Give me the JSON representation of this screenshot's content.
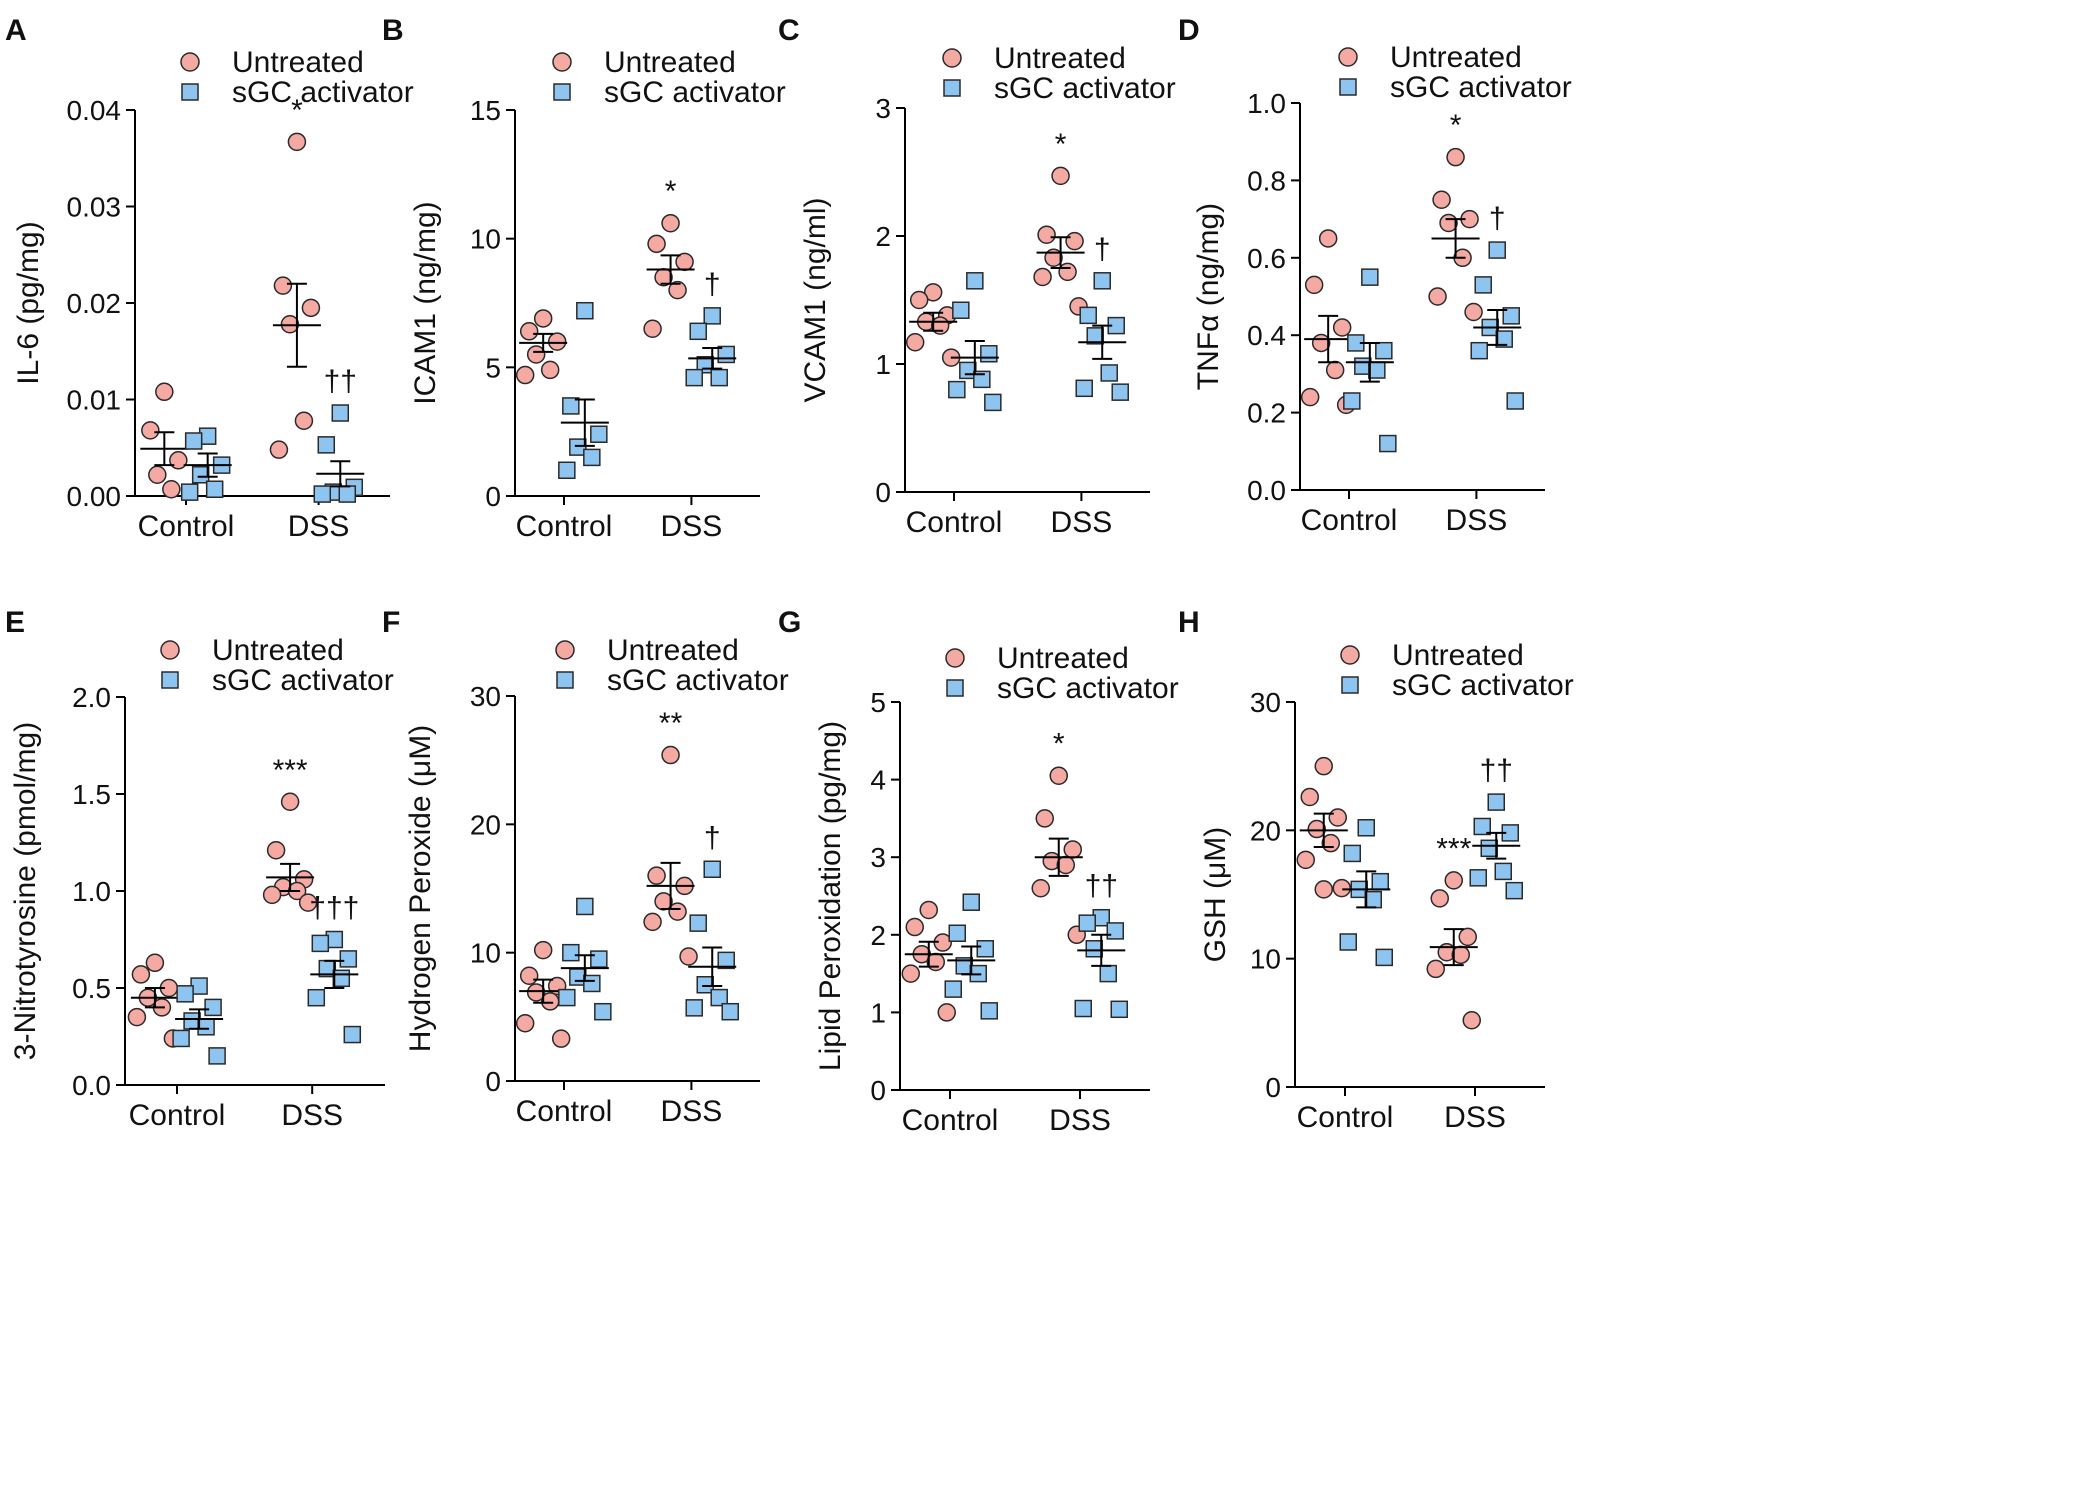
{
  "colors": {
    "untreated": "#f4a9a3",
    "sgc": "#8ec5f0",
    "stroke": "#2a2a2a"
  },
  "legend": {
    "untreated": "Untreated",
    "sgc": "sGC activator"
  },
  "chart_data": [
    {
      "panel": "A",
      "type": "scatter",
      "ylabel": "IL-6 (pg/mg)",
      "ylim": [
        0,
        0.04
      ],
      "yticks": [
        "0.00",
        "0.01",
        "0.02",
        "0.03",
        "0.04"
      ],
      "categories": [
        "Control",
        "DSS"
      ],
      "series": [
        {
          "name": "Untreated",
          "groups": [
            {
              "category": "Control",
              "values": [
                0.0108,
                0.0068,
                0.0037,
                0.0022,
                0.0007
              ],
              "mean": 0.0049,
              "sem": 0.0017
            },
            {
              "category": "DSS",
              "values": [
                0.0367,
                0.0218,
                0.0195,
                0.0178,
                0.0078,
                0.0048
              ],
              "mean": 0.0177,
              "sem": 0.0043,
              "annotation": "*"
            }
          ]
        },
        {
          "name": "sGC activator",
          "groups": [
            {
              "category": "Control",
              "values": [
                0.0062,
                0.0057,
                0.0032,
                0.0022,
                0.0007,
                0.0004
              ],
              "mean": 0.0032,
              "sem": 0.0012
            },
            {
              "category": "DSS",
              "values": [
                0.0086,
                0.0053,
                0.0009,
                0.0004,
                0.0002,
                0.0002
              ],
              "mean": 0.0023,
              "sem": 0.0013,
              "annotation": "††"
            }
          ]
        }
      ]
    },
    {
      "panel": "B",
      "type": "scatter",
      "ylabel": "ICAM1 (ng/mg)",
      "ylim": [
        0,
        15
      ],
      "yticks": [
        "0",
        "5",
        "10",
        "15"
      ],
      "categories": [
        "Control",
        "DSS"
      ],
      "series": [
        {
          "name": "Untreated",
          "groups": [
            {
              "category": "Control",
              "values": [
                6.9,
                6.4,
                6.0,
                5.5,
                4.9,
                4.7
              ],
              "mean": 5.95,
              "sem": 0.35
            },
            {
              "category": "DSS",
              "values": [
                10.6,
                9.8,
                9.1,
                8.5,
                8.0,
                6.5
              ],
              "mean": 8.8,
              "sem": 0.55,
              "annotation": "*"
            }
          ]
        },
        {
          "name": "sGC activator",
          "groups": [
            {
              "category": "Control",
              "values": [
                7.2,
                3.5,
                2.4,
                1.9,
                1.5,
                1.0
              ],
              "mean": 2.85,
              "sem": 0.9
            },
            {
              "category": "DSS",
              "values": [
                7.0,
                6.4,
                5.5,
                5.1,
                4.6,
                4.6
              ],
              "mean": 5.35,
              "sem": 0.4,
              "annotation": "†"
            }
          ]
        }
      ]
    },
    {
      "panel": "C",
      "type": "scatter",
      "ylabel": "VCAM1 (ng/ml)",
      "ylim": [
        0,
        3
      ],
      "yticks": [
        "0",
        "1",
        "2",
        "3"
      ],
      "categories": [
        "Control",
        "DSS"
      ],
      "series": [
        {
          "name": "Untreated",
          "groups": [
            {
              "category": "Control",
              "values": [
                1.56,
                1.5,
                1.38,
                1.33,
                1.3,
                1.17,
                1.05
              ],
              "mean": 1.33,
              "sem": 0.07
            },
            {
              "category": "DSS",
              "values": [
                2.47,
                2.01,
                1.96,
                1.83,
                1.72,
                1.68,
                1.45
              ],
              "mean": 1.87,
              "sem": 0.12,
              "annotation": "*"
            }
          ]
        },
        {
          "name": "sGC activator",
          "groups": [
            {
              "category": "Control",
              "values": [
                1.65,
                1.42,
                1.08,
                0.95,
                0.88,
                0.8,
                0.7
              ],
              "mean": 1.05,
              "sem": 0.13
            },
            {
              "category": "DSS",
              "values": [
                1.65,
                1.38,
                1.3,
                1.22,
                0.93,
                0.81,
                0.78
              ],
              "mean": 1.17,
              "sem": 0.13,
              "annotation": "†"
            }
          ]
        }
      ]
    },
    {
      "panel": "D",
      "type": "scatter",
      "ylabel": "TNFα (ng/mg)",
      "ylim": [
        0,
        1.0
      ],
      "yticks": [
        "0.0",
        "0.2",
        "0.4",
        "0.6",
        "0.8",
        "1.0"
      ],
      "categories": [
        "Control",
        "DSS"
      ],
      "series": [
        {
          "name": "Untreated",
          "groups": [
            {
              "category": "Control",
              "values": [
                0.65,
                0.53,
                0.42,
                0.38,
                0.31,
                0.24,
                0.22
              ],
              "mean": 0.39,
              "sem": 0.06
            },
            {
              "category": "DSS",
              "values": [
                0.86,
                0.75,
                0.7,
                0.69,
                0.6,
                0.5,
                0.46
              ],
              "mean": 0.65,
              "sem": 0.05,
              "annotation": "*"
            }
          ]
        },
        {
          "name": "sGC activator",
          "groups": [
            {
              "category": "Control",
              "values": [
                0.55,
                0.38,
                0.36,
                0.32,
                0.31,
                0.23,
                0.12
              ],
              "mean": 0.33,
              "sem": 0.05
            },
            {
              "category": "DSS",
              "values": [
                0.62,
                0.53,
                0.45,
                0.42,
                0.39,
                0.36,
                0.23
              ],
              "mean": 0.42,
              "sem": 0.045,
              "annotation": "†"
            }
          ]
        }
      ]
    },
    {
      "panel": "E",
      "type": "scatter",
      "ylabel": "3-Nitrotyrosine (pmol/mg)",
      "ylim": [
        0,
        2.0
      ],
      "yticks": [
        "0.0",
        "0.5",
        "1.0",
        "1.5",
        "2.0"
      ],
      "categories": [
        "Control",
        "DSS"
      ],
      "series": [
        {
          "name": "Untreated",
          "groups": [
            {
              "category": "Control",
              "values": [
                0.63,
                0.57,
                0.5,
                0.45,
                0.4,
                0.35,
                0.24
              ],
              "mean": 0.45,
              "sem": 0.05
            },
            {
              "category": "DSS",
              "values": [
                1.46,
                1.21,
                1.06,
                1.02,
                1.0,
                0.98,
                0.94
              ],
              "mean": 1.07,
              "sem": 0.07,
              "annotation": "***"
            }
          ]
        },
        {
          "name": "sGC activator",
          "groups": [
            {
              "category": "Control",
              "values": [
                0.51,
                0.47,
                0.4,
                0.33,
                0.3,
                0.24,
                0.15
              ],
              "mean": 0.34,
              "sem": 0.05
            },
            {
              "category": "DSS",
              "values": [
                0.75,
                0.73,
                0.65,
                0.6,
                0.55,
                0.45,
                0.26
              ],
              "mean": 0.57,
              "sem": 0.07,
              "annotation": "†††"
            }
          ]
        }
      ]
    },
    {
      "panel": "F",
      "type": "scatter",
      "ylabel": "Hydrogen Peroxide (μM)",
      "ylim": [
        0,
        30
      ],
      "yticks": [
        "0",
        "10",
        "20",
        "30"
      ],
      "categories": [
        "Control",
        "DSS"
      ],
      "series": [
        {
          "name": "Untreated",
          "groups": [
            {
              "category": "Control",
              "values": [
                10.2,
                8.2,
                7.4,
                6.9,
                6.2,
                4.5,
                3.3
              ],
              "mean": 7.0,
              "sem": 0.9
            },
            {
              "category": "DSS",
              "values": [
                25.4,
                16.0,
                15.2,
                14.0,
                13.2,
                12.4,
                9.7
              ],
              "mean": 15.2,
              "sem": 1.8,
              "annotation": "**"
            }
          ]
        },
        {
          "name": "sGC activator",
          "groups": [
            {
              "category": "Control",
              "values": [
                13.6,
                10.0,
                9.5,
                8.1,
                7.6,
                6.5,
                5.4
              ],
              "mean": 8.8,
              "sem": 1.0
            },
            {
              "category": "DSS",
              "values": [
                16.5,
                12.3,
                9.4,
                7.5,
                6.5,
                5.7,
                5.4
              ],
              "mean": 8.9,
              "sem": 1.5,
              "annotation": "†"
            }
          ]
        }
      ]
    },
    {
      "panel": "G",
      "type": "scatter",
      "ylabel": "Lipid Peroxidation (pg/mg)",
      "ylim": [
        0,
        5
      ],
      "yticks": [
        "0",
        "1",
        "2",
        "3",
        "4",
        "5"
      ],
      "categories": [
        "Control",
        "DSS"
      ],
      "series": [
        {
          "name": "Untreated",
          "groups": [
            {
              "category": "Control",
              "values": [
                2.32,
                2.1,
                1.9,
                1.75,
                1.65,
                1.5,
                1.0
              ],
              "mean": 1.75,
              "sem": 0.16
            },
            {
              "category": "DSS",
              "values": [
                4.05,
                3.5,
                3.1,
                2.95,
                2.9,
                2.6,
                2.0
              ],
              "mean": 3.0,
              "sem": 0.24,
              "annotation": "*"
            }
          ]
        },
        {
          "name": "sGC activator",
          "groups": [
            {
              "category": "Control",
              "values": [
                2.42,
                2.02,
                1.82,
                1.6,
                1.5,
                1.3,
                1.02
              ],
              "mean": 1.67,
              "sem": 0.18
            },
            {
              "category": "DSS",
              "values": [
                2.22,
                2.15,
                2.05,
                1.82,
                1.5,
                1.05,
                1.04
              ],
              "mean": 1.8,
              "sem": 0.2,
              "annotation": "††"
            }
          ]
        }
      ]
    },
    {
      "panel": "H",
      "type": "scatter",
      "ylabel": "GSH (μM)",
      "ylim": [
        0,
        30
      ],
      "yticks": [
        "0",
        "10",
        "20",
        "30"
      ],
      "categories": [
        "Control",
        "DSS"
      ],
      "series": [
        {
          "name": "Untreated",
          "groups": [
            {
              "category": "Control",
              "values": [
                25.0,
                22.6,
                21.0,
                20.1,
                19.0,
                17.7,
                15.5,
                15.4
              ],
              "mean": 20.0,
              "sem": 1.3
            },
            {
              "category": "DSS",
              "values": [
                16.1,
                14.7,
                11.7,
                10.5,
                10.3,
                9.2,
                5.2
              ],
              "mean": 10.9,
              "sem": 1.4,
              "annotation": "***"
            }
          ]
        },
        {
          "name": "sGC activator",
          "groups": [
            {
              "category": "Control",
              "values": [
                20.2,
                18.2,
                16.0,
                15.4,
                14.6,
                11.3,
                10.1
              ],
              "mean": 15.4,
              "sem": 1.4
            },
            {
              "category": "DSS",
              "values": [
                22.2,
                20.3,
                19.8,
                18.6,
                16.8,
                16.3,
                15.3
              ],
              "mean": 18.8,
              "sem": 1.0,
              "annotation": "††"
            }
          ]
        }
      ]
    }
  ]
}
